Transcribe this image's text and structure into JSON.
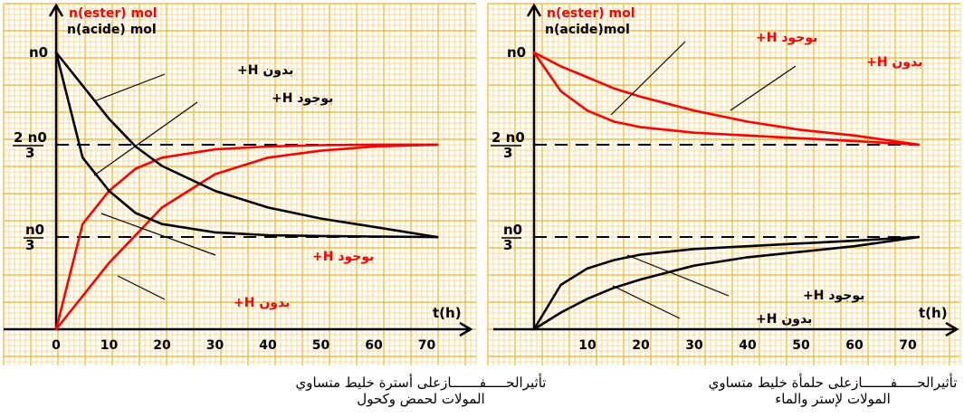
{
  "chart_data": [
    {
      "type": "line",
      "title": "تأثيرالحـــــفـــــــازعلى أسترة خليط متساوي",
      "subtitle": "المولات لحمض وكحول",
      "xlabel": "t(h)",
      "ylabel_red": "n(ester) mol",
      "ylabel_black": "n(acide)  mol",
      "xlim": [
        0,
        75
      ],
      "x_ticks": [
        "0",
        "10",
        "20",
        "30",
        "40",
        "50",
        "60",
        "70"
      ],
      "y_ticks": [
        "n0",
        "2 n0 / 3",
        "n0 / 3"
      ],
      "grid": true,
      "reference_lines": [
        "2n0/3",
        "n0/3"
      ],
      "series": [
        {
          "label": "بوجود H+",
          "color": "#ff0000",
          "quantity": "ester",
          "x": [
            0,
            5,
            10,
            15,
            20,
            30,
            40,
            50,
            60,
            72
          ],
          "y": [
            0,
            0.38,
            0.5,
            0.58,
            0.62,
            0.65,
            0.66,
            0.665,
            0.667,
            0.667
          ]
        },
        {
          "label": "بدون H+",
          "color": "#ff0000",
          "quantity": "ester",
          "x": [
            0,
            5,
            10,
            15,
            20,
            30,
            40,
            50,
            60,
            72
          ],
          "y": [
            0,
            0.12,
            0.24,
            0.34,
            0.44,
            0.56,
            0.62,
            0.645,
            0.66,
            0.667
          ]
        },
        {
          "label": "بوجود H+",
          "color": "#000000",
          "quantity": "acide",
          "x": [
            0,
            5,
            10,
            15,
            20,
            30,
            40,
            50,
            60,
            72
          ],
          "y": [
            1,
            0.62,
            0.5,
            0.42,
            0.38,
            0.35,
            0.34,
            0.337,
            0.335,
            0.333
          ]
        },
        {
          "label": "بدون H+",
          "color": "#000000",
          "quantity": "acide",
          "x": [
            0,
            5,
            10,
            15,
            20,
            30,
            40,
            50,
            60,
            72
          ],
          "y": [
            1,
            0.88,
            0.76,
            0.66,
            0.59,
            0.5,
            0.44,
            0.4,
            0.37,
            0.333
          ]
        }
      ],
      "annotations": [
        "بدون H+",
        "بوجود H+",
        "بوجود H+",
        "بدون H+"
      ]
    },
    {
      "type": "line",
      "title": "تأثيرالحـــــفـــــــازعلى حلمأة خليط متساوي",
      "subtitle": "المولات لإستر والماء",
      "xlabel": "t(h)",
      "ylabel_red": "n(ester) mol",
      "ylabel_black": "n(acide)mol",
      "xlim": [
        0,
        75
      ],
      "x_ticks": [
        "10",
        "20",
        "30",
        "40",
        "50",
        "60",
        "70"
      ],
      "y_ticks": [
        "n0",
        "2 n0 / 3",
        "n0 / 3"
      ],
      "grid": true,
      "reference_lines": [
        "2n0/3",
        "n0/3"
      ],
      "series": [
        {
          "label": "بوجود H+",
          "color": "#ff0000",
          "quantity": "ester",
          "x": [
            0,
            5,
            10,
            15,
            20,
            30,
            40,
            50,
            60,
            72
          ],
          "y": [
            1,
            0.86,
            0.79,
            0.75,
            0.73,
            0.71,
            0.7,
            0.69,
            0.68,
            0.667
          ]
        },
        {
          "label": "بدون H+",
          "color": "#ff0000",
          "quantity": "ester",
          "x": [
            0,
            5,
            10,
            15,
            20,
            30,
            40,
            50,
            60,
            72
          ],
          "y": [
            1,
            0.95,
            0.91,
            0.87,
            0.84,
            0.79,
            0.75,
            0.72,
            0.7,
            0.667
          ]
        },
        {
          "label": "بوجود H+",
          "color": "#000000",
          "quantity": "acide",
          "x": [
            0,
            5,
            10,
            15,
            20,
            30,
            40,
            50,
            60,
            72
          ],
          "y": [
            0,
            0.16,
            0.22,
            0.25,
            0.27,
            0.29,
            0.3,
            0.31,
            0.32,
            0.333
          ]
        },
        {
          "label": "بدون H+",
          "color": "#000000",
          "quantity": "acide",
          "x": [
            0,
            5,
            10,
            15,
            20,
            30,
            40,
            50,
            60,
            72
          ],
          "y": [
            0,
            0.06,
            0.11,
            0.15,
            0.18,
            0.23,
            0.26,
            0.28,
            0.3,
            0.333
          ]
        }
      ],
      "annotations": [
        "بوجود H+",
        "بدون H+",
        "بوجود H+",
        "بدون H+"
      ]
    }
  ]
}
